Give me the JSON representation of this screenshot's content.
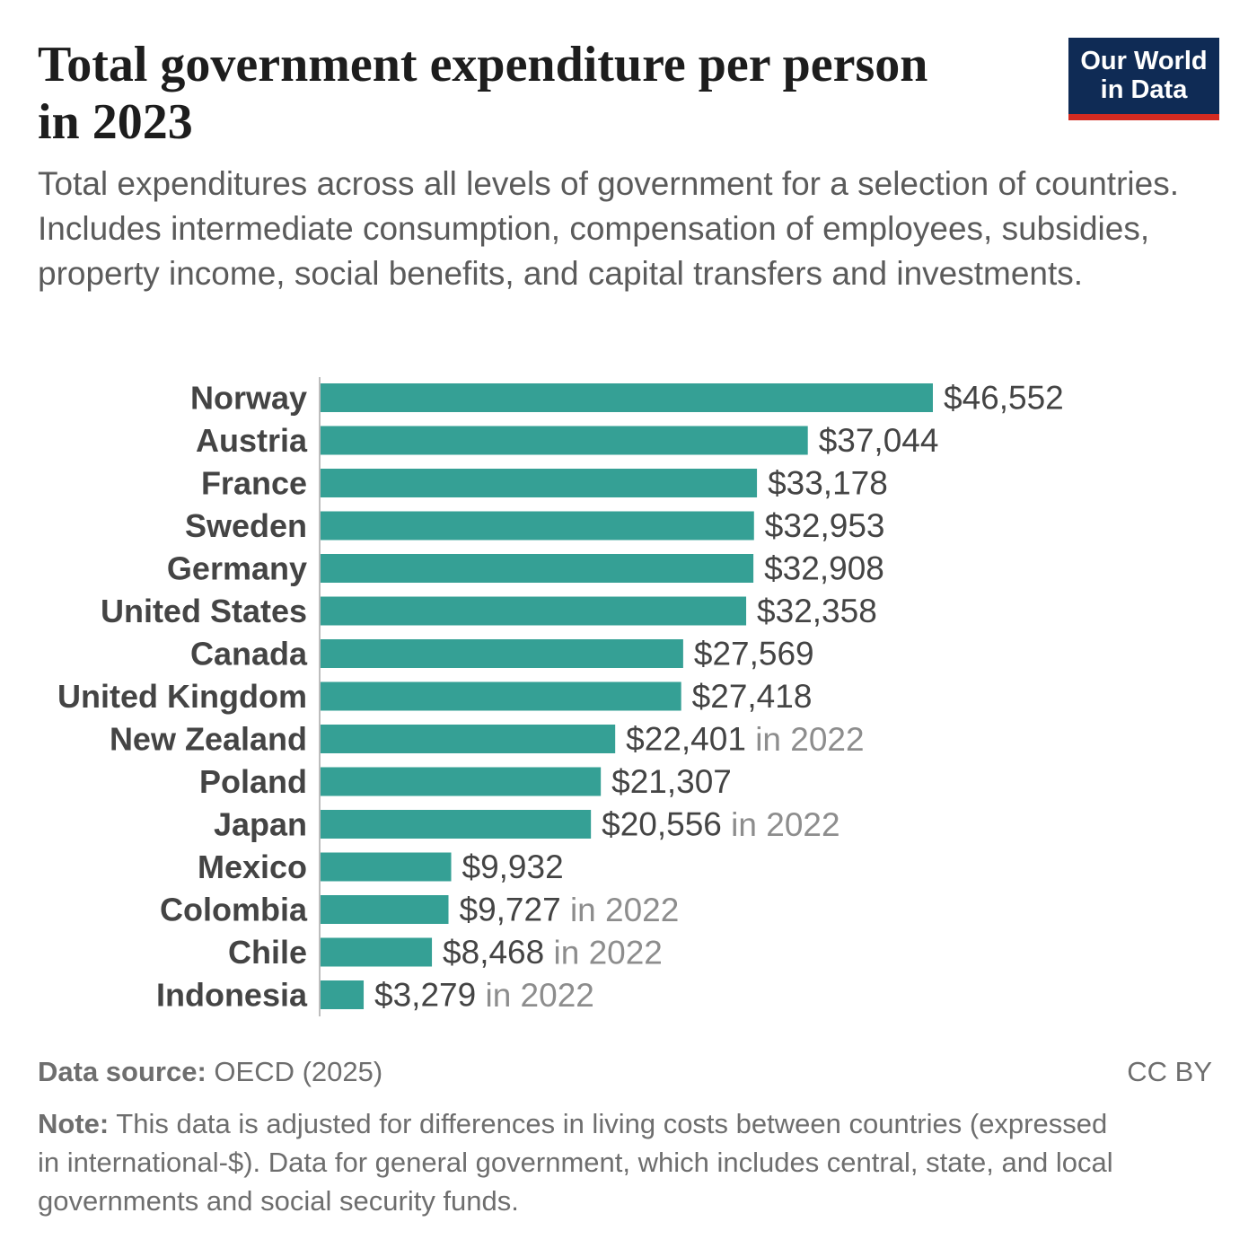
{
  "header": {
    "title": "Total government expenditure per person in 2023",
    "subtitle": "Total expenditures across all levels of government for a selection of countries. Includes intermediate consumption, compensation of employees, subsidies, property income, social benefits, and capital transfers and investments.",
    "logo_line1": "Our World",
    "logo_line2": "in Data"
  },
  "colors": {
    "bar": "#35a095",
    "label": "#444444",
    "value": "#444444",
    "year_note": "#8d8d8d",
    "logo_bg": "#0f2b55",
    "logo_accent": "#d42b21"
  },
  "chart_data": {
    "type": "bar",
    "orientation": "horizontal",
    "title": "Total government expenditure per person in 2023",
    "xlabel": "",
    "ylabel": "",
    "xlim": [
      0,
      46552
    ],
    "categories": [
      "Norway",
      "Austria",
      "France",
      "Sweden",
      "Germany",
      "United States",
      "Canada",
      "United Kingdom",
      "New Zealand",
      "Poland",
      "Japan",
      "Mexico",
      "Colombia",
      "Chile",
      "Indonesia"
    ],
    "values": [
      46552,
      37044,
      33178,
      32953,
      32908,
      32358,
      27569,
      27418,
      22401,
      21307,
      20556,
      9932,
      9727,
      8468,
      3279
    ],
    "value_labels": [
      "$46,552",
      "$37,044",
      "$33,178",
      "$32,953",
      "$32,908",
      "$32,358",
      "$27,569",
      "$27,418",
      "$22,401",
      "$21,307",
      "$20,556",
      "$9,932",
      "$9,727",
      "$8,468",
      "$3,279"
    ],
    "year_notes": [
      "",
      "",
      "",
      "",
      "",
      "",
      "",
      "",
      "in 2022",
      "",
      "in 2022",
      "",
      "in 2022",
      "in 2022",
      "in 2022"
    ]
  },
  "footer": {
    "source_label": "Data source:",
    "source_value": " OECD (2025)",
    "license": "CC BY",
    "note_label": "Note:",
    "note_text": " This data is adjusted for differences in living costs between countries (expressed in international-$). Data for general government, which includes central, state, and local governments and social security funds."
  }
}
